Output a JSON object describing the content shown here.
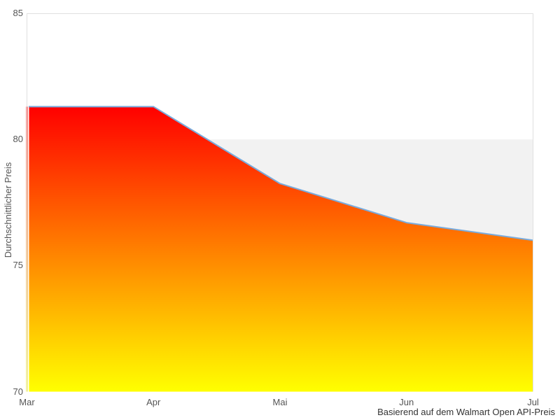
{
  "chart_data": {
    "type": "area",
    "categories": [
      "Mar",
      "Apr",
      "Mai",
      "Jun",
      "Jul"
    ],
    "values": [
      81.3,
      81.3,
      78.25,
      76.7,
      76.0
    ],
    "ylabel": "Durchschnittlicher Preis",
    "caption": "Basierend auf dem Walmart Open API-Preis",
    "yticks": [
      70,
      75,
      80,
      85
    ],
    "ylim": [
      70,
      85
    ],
    "grid": false,
    "legend": false,
    "plot_band": {
      "from": 75,
      "to": 80
    },
    "colors": {
      "line": "#7aabdc",
      "gradient_top": "#ff0000",
      "gradient_bottom": "#ffff00",
      "band": "#f2f2f2",
      "axis": "#e0e0e0",
      "label": "#555555",
      "caption": "#333333"
    }
  }
}
